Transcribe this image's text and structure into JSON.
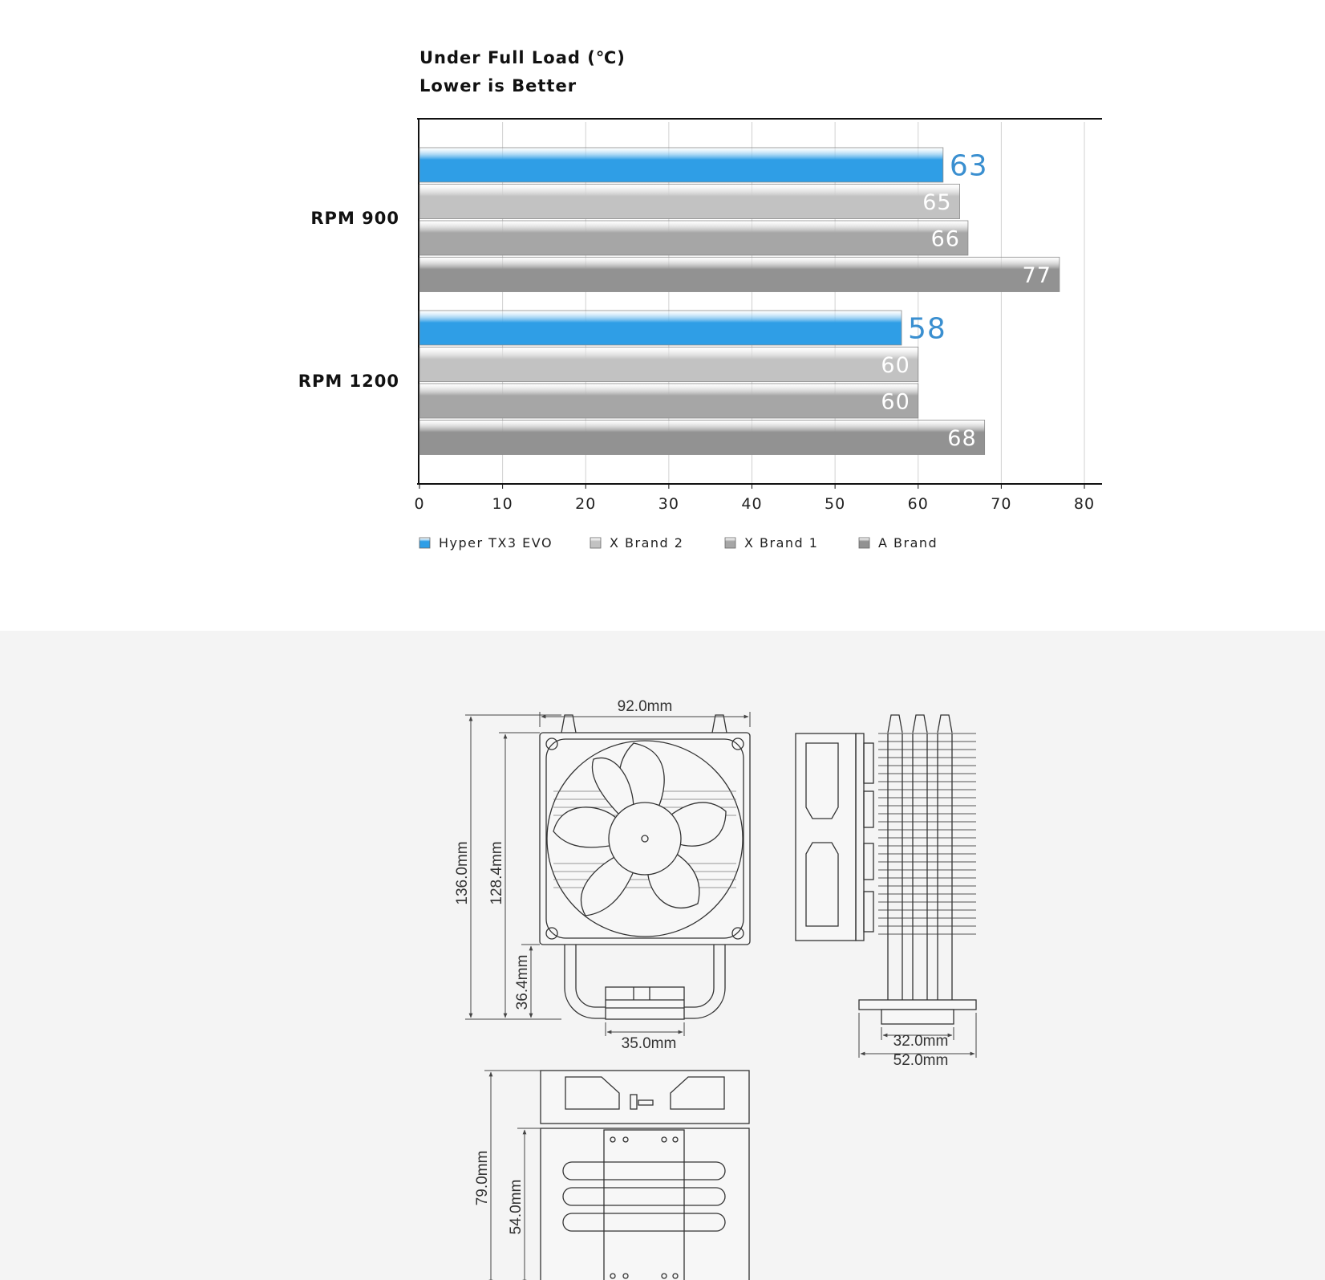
{
  "chart_data": {
    "type": "bar",
    "orientation": "horizontal",
    "title": "Under Full Load (℃)",
    "subtitle": "Lower is Better",
    "categories": [
      "RPM 900",
      "RPM 1200"
    ],
    "series": [
      {
        "name": "Hyper TX3 EVO",
        "values": [
          63,
          58
        ],
        "color": "#2f9ee6",
        "label_color": "#3a8fd0"
      },
      {
        "name": "X Brand 2",
        "values": [
          65,
          60
        ],
        "color": "#c2c2c2",
        "label_color": "#ffffff"
      },
      {
        "name": "X Brand 1",
        "values": [
          66,
          60
        ],
        "color": "#a6a6a6",
        "label_color": "#ffffff"
      },
      {
        "name": "A Brand",
        "values": [
          77,
          68
        ],
        "color": "#929292",
        "label_color": "#ffffff"
      }
    ],
    "xlim": [
      0,
      80
    ],
    "xticks": [
      0,
      10,
      20,
      30,
      40,
      50,
      60,
      70,
      80
    ],
    "grid": true,
    "legend_position": "bottom"
  },
  "drawing": {
    "front_view": {
      "width": "92.0mm",
      "height": "136.0mm",
      "fin_height": "128.4mm",
      "base_height": "36.4mm",
      "base_width": "35.0mm"
    },
    "side_view": {
      "inner_width": "32.0mm",
      "outer_width": "52.0mm"
    },
    "top_view": {
      "depth": "79.0mm",
      "fin_depth": "54.0mm"
    }
  }
}
